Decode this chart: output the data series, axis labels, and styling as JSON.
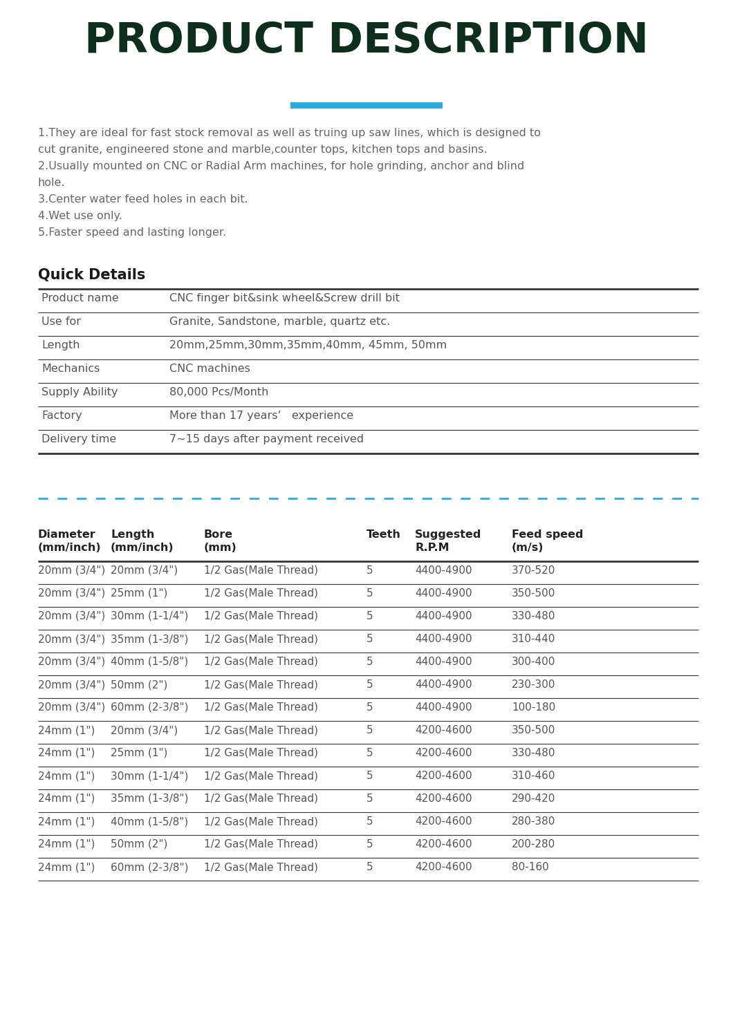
{
  "title": "PRODUCT DESCRIPTION",
  "title_color": "#0d2e1c",
  "title_underline_color": "#29abe2",
  "bg_color": "#ffffff",
  "description_lines": [
    "1.They are ideal for fast stock removal as well as truing up saw lines, which is designed to",
    "cut granite, engineered stone and marble,counter tops, kitchen tops and basins.",
    "2.Usually mounted on CNC or Radial Arm machines, for hole grinding, anchor and blind",
    "hole.",
    "3.Center water feed holes in each bit.",
    "4.Wet use only.",
    "5.Faster speed and lasting longer."
  ],
  "quick_details_title": "Quick Details",
  "quick_details": [
    [
      "Product name",
      "CNC finger bit&sink wheel&Screw drill bit"
    ],
    [
      "Use for",
      "Granite, Sandstone, marble, quartz etc."
    ],
    [
      "Length",
      "20mm,25mm,30mm,35mm,40mm, 45mm, 50mm"
    ],
    [
      "Mechanics",
      "CNC machines"
    ],
    [
      "Supply Ability",
      "80,000 Pcs/Month"
    ],
    [
      "Factory",
      "More than 17 years’   experience"
    ],
    [
      "Delivery time",
      "7~15 days after payment received"
    ]
  ],
  "table_col_headers": [
    "Diameter\n(mm/inch)",
    "Length\n(mm/inch)",
    "Bore\n(mm)",
    "Teeth",
    "Suggested\nR.P.M",
    "Feed speed\n(m/s)"
  ],
  "table_data": [
    [
      "20mm (3/4\")",
      "20mm (3/4\")",
      "1/2 Gas(Male Thread)",
      "5",
      "4400-4900",
      "370-520"
    ],
    [
      "20mm (3/4\")",
      "25mm (1\")",
      "1/2 Gas(Male Thread)",
      "5",
      "4400-4900",
      "350-500"
    ],
    [
      "20mm (3/4\")",
      "30mm (1-1/4\")",
      "1/2 Gas(Male Thread)",
      "5",
      "4400-4900",
      "330-480"
    ],
    [
      "20mm (3/4\")",
      "35mm (1-3/8\")",
      "1/2 Gas(Male Thread)",
      "5",
      "4400-4900",
      "310-440"
    ],
    [
      "20mm (3/4\")",
      "40mm (1-5/8\")",
      "1/2 Gas(Male Thread)",
      "5",
      "4400-4900",
      "300-400"
    ],
    [
      "20mm (3/4\")",
      "50mm (2\")",
      "1/2 Gas(Male Thread)",
      "5",
      "4400-4900",
      "230-300"
    ],
    [
      "20mm (3/4\")",
      "60mm (2-3/8\")",
      "1/2 Gas(Male Thread)",
      "5",
      "4400-4900",
      "100-180"
    ],
    [
      "24mm (1\")",
      "20mm (3/4\")",
      "1/2 Gas(Male Thread)",
      "5",
      "4200-4600",
      "350-500"
    ],
    [
      "24mm (1\")",
      "25mm (1\")",
      "1/2 Gas(Male Thread)",
      "5",
      "4200-4600",
      "330-480"
    ],
    [
      "24mm (1\")",
      "30mm (1-1/4\")",
      "1/2 Gas(Male Thread)",
      "5",
      "4200-4600",
      "310-460"
    ],
    [
      "24mm (1\")",
      "35mm (1-3/8\")",
      "1/2 Gas(Male Thread)",
      "5",
      "4200-4600",
      "290-420"
    ],
    [
      "24mm (1\")",
      "40mm (1-5/8\")",
      "1/2 Gas(Male Thread)",
      "5",
      "4200-4600",
      "280-380"
    ],
    [
      "24mm (1\")",
      "50mm (2\")",
      "1/2 Gas(Male Thread)",
      "5",
      "4200-4600",
      "200-280"
    ],
    [
      "24mm (1\")",
      "60mm (2-3/8\")",
      "1/2 Gas(Male Thread)",
      "5",
      "4200-4600",
      "80-160"
    ]
  ],
  "text_color": "#666666",
  "table_text_color": "#555555",
  "separator_color": "#333333",
  "dashed_line_color": "#29abe2",
  "fig_width": 10.6,
  "fig_height": 14.8,
  "dpi": 100
}
